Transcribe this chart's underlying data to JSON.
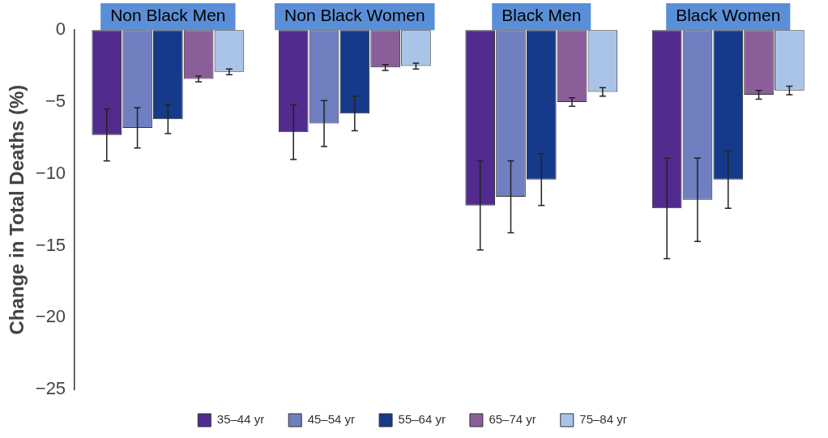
{
  "chart_data": {
    "type": "bar",
    "ylabel": "Change in Total Deaths (%)",
    "categories": [
      "Non Black Men",
      "Non Black Women",
      "Black Men",
      "Black Women"
    ],
    "series": [
      {
        "name": "35–44 yr",
        "color": "#512b8e",
        "values": [
          -7.3,
          -7.1,
          -12.2,
          -12.4
        ],
        "errors": [
          1.8,
          1.9,
          3.1,
          3.5
        ]
      },
      {
        "name": "45–54 yr",
        "color": "#6f7fc0",
        "values": [
          -6.8,
          -6.5,
          -11.6,
          -11.8
        ],
        "errors": [
          1.4,
          1.6,
          2.5,
          2.9
        ]
      },
      {
        "name": "55–64 yr",
        "color": "#163a8a",
        "values": [
          -6.2,
          -5.8,
          -10.4,
          -10.4
        ],
        "errors": [
          1.0,
          1.2,
          1.8,
          2.0
        ]
      },
      {
        "name": "65–74 yr",
        "color": "#8b5e9a",
        "values": [
          -3.4,
          -2.6,
          -5.0,
          -4.5
        ],
        "errors": [
          0.2,
          0.2,
          0.3,
          0.3
        ]
      },
      {
        "name": "75–84 yr",
        "color": "#a9c4e8",
        "values": [
          -2.9,
          -2.5,
          -4.3,
          -4.2
        ],
        "errors": [
          0.2,
          0.2,
          0.3,
          0.3
        ]
      }
    ],
    "ylim": [
      -25,
      0
    ],
    "yticks": [
      0,
      {
        "value": -5,
        "label": "−5"
      },
      {
        "value": -10,
        "label": "−10"
      },
      {
        "value": -15,
        "label": "−15"
      },
      {
        "value": -20,
        "label": "−20"
      },
      {
        "value": -25,
        "label": "−25"
      }
    ],
    "grid": false,
    "legend": "bottom"
  }
}
